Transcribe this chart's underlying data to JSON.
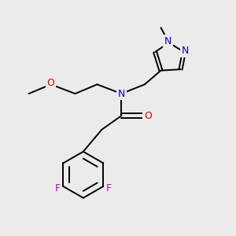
{
  "bg_color": "#ebebeb",
  "bond_color": "#000000",
  "N_color": "#0000cc",
  "O_color": "#cc0000",
  "F_color": "#cc00cc",
  "font_size": 9.0,
  "bond_lw": 1.4,
  "figsize": [
    3.0,
    3.0
  ],
  "dpi": 100,
  "xlim": [
    0,
    10
  ],
  "ylim": [
    0,
    10
  ]
}
